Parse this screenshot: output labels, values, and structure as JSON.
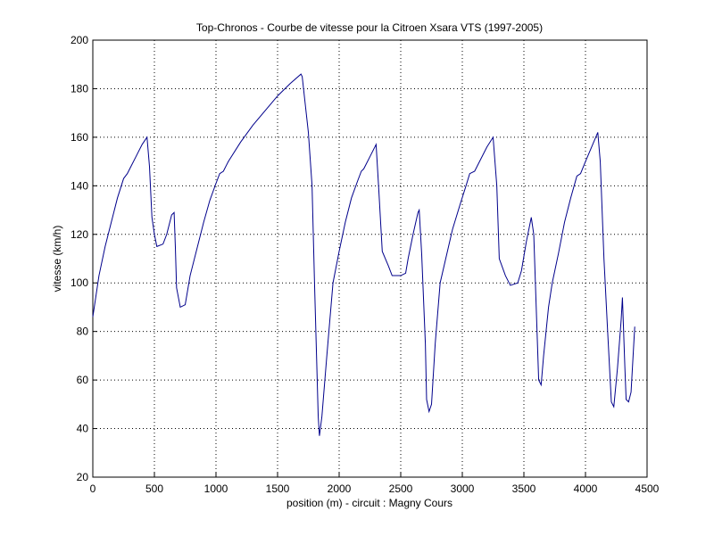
{
  "chart_data": {
    "type": "line",
    "title": "Top-Chronos - Courbe de vitesse pour la Citroen Xsara VTS (1997-2005)",
    "xlabel": "position (m) - circuit : Magny Cours",
    "ylabel": "vitesse (km/h)",
    "x": [
      0,
      50,
      100,
      150,
      200,
      250,
      280,
      300,
      350,
      400,
      440,
      460,
      480,
      500,
      520,
      570,
      600,
      640,
      660,
      670,
      680,
      710,
      750,
      790,
      850,
      900,
      950,
      1000,
      1030,
      1060,
      1100,
      1200,
      1300,
      1400,
      1500,
      1600,
      1690,
      1700,
      1750,
      1780,
      1800,
      1830,
      1840,
      1860,
      1900,
      1950,
      2000,
      2050,
      2100,
      2150,
      2180,
      2200,
      2250,
      2300,
      2320,
      2350,
      2400,
      2430,
      2500,
      2540,
      2560,
      2600,
      2640,
      2650,
      2670,
      2700,
      2710,
      2730,
      2750,
      2780,
      2820,
      2870,
      2920,
      2980,
      3030,
      3060,
      3100,
      3150,
      3200,
      3250,
      3280,
      3300,
      3350,
      3390,
      3450,
      3480,
      3520,
      3560,
      3580,
      3600,
      3620,
      3640,
      3660,
      3700,
      3730,
      3780,
      3830,
      3880,
      3930,
      3960,
      4000,
      4050,
      4100,
      4120,
      4150,
      4180,
      4210,
      4230,
      4260,
      4290,
      4300,
      4320,
      4330,
      4350,
      4370,
      4400
    ],
    "values": [
      86,
      103,
      115,
      125,
      135,
      143,
      145,
      147,
      152,
      157,
      160,
      148,
      127,
      120,
      115,
      116,
      120,
      128,
      129,
      115,
      98,
      90,
      91,
      103,
      115,
      125,
      134,
      141,
      145,
      146,
      150,
      158,
      165,
      171,
      177,
      182,
      186,
      185,
      162,
      140,
      100,
      45,
      37,
      45,
      70,
      100,
      113,
      125,
      135,
      142,
      146,
      147,
      152,
      157,
      140,
      113,
      107,
      103,
      103,
      104,
      110,
      120,
      129,
      130,
      112,
      75,
      52,
      47,
      50,
      75,
      100,
      111,
      122,
      132,
      140,
      145,
      146,
      151,
      156,
      160,
      140,
      110,
      103,
      99,
      100,
      105,
      117,
      127,
      120,
      90,
      60,
      58,
      70,
      90,
      100,
      112,
      125,
      135,
      144,
      145,
      150,
      156,
      162,
      150,
      110,
      80,
      51,
      49,
      65,
      85,
      94,
      65,
      52,
      51,
      55,
      82
    ],
    "color": "#00008b",
    "xlim": [
      0,
      4500
    ],
    "xticks": [
      0,
      500,
      1000,
      1500,
      2000,
      2500,
      3000,
      3500,
      4000,
      4500
    ],
    "ylim": [
      20,
      200
    ],
    "yticks": [
      20,
      40,
      60,
      80,
      100,
      120,
      140,
      160,
      180,
      200
    ],
    "grid": true
  }
}
